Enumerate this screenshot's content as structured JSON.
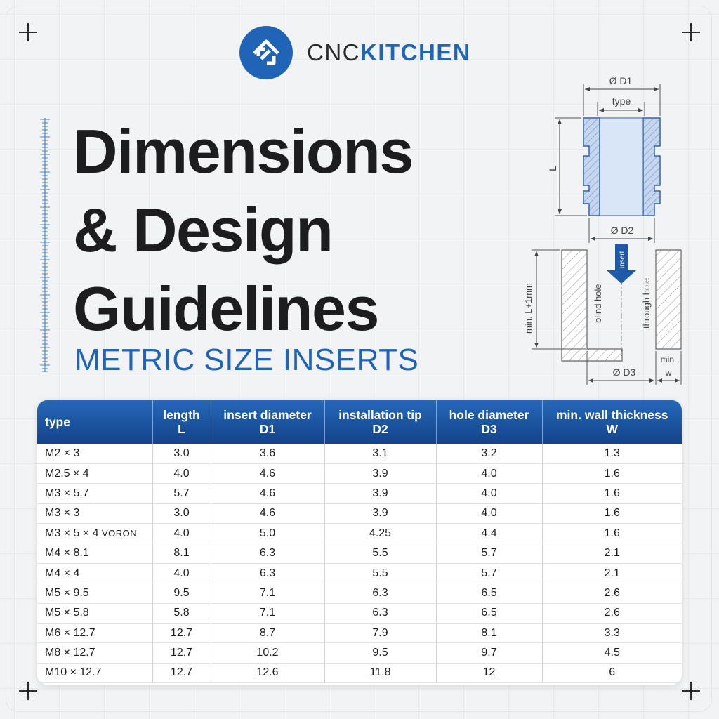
{
  "brand": {
    "name_part1": "CNC",
    "name_part2": "KITCHEN",
    "colors": {
      "primary": "#1f64b6",
      "dark": "#1d1d1f"
    }
  },
  "title": {
    "line1": "Dimensions",
    "line2": "& Design",
    "line3": "Guidelines"
  },
  "subtitle": "METRIC SIZE INSERTS",
  "diagram": {
    "label_d1": "Ø D1",
    "label_type": "type",
    "label_L": "L",
    "label_d2": "Ø D2",
    "label_insert": "insert",
    "label_min_l": "min. L+1mm",
    "label_blind": "blind hole",
    "label_through": "through hole",
    "label_d3": "Ø D3",
    "label_min": "min.",
    "label_w": "w"
  },
  "table": {
    "headers": [
      {
        "line1": "type",
        "line2": ""
      },
      {
        "line1": "length",
        "line2": "L"
      },
      {
        "line1": "insert diameter",
        "line2": "D1"
      },
      {
        "line1": "installation tip",
        "line2": "D2"
      },
      {
        "line1": "hole diameter",
        "line2": "D3"
      },
      {
        "line1": "min. wall thickness",
        "line2": "W"
      }
    ],
    "rows": [
      {
        "type": "M2 × 3",
        "note": "",
        "L": "3.0",
        "D1": "3.6",
        "D2": "3.1",
        "D3": "3.2",
        "W": "1.3"
      },
      {
        "type": "M2.5 × 4",
        "note": "",
        "L": "4.0",
        "D1": "4.6",
        "D2": "3.9",
        "D3": "4.0",
        "W": "1.6"
      },
      {
        "type": "M3 × 5.7",
        "note": "",
        "L": "5.7",
        "D1": "4.6",
        "D2": "3.9",
        "D3": "4.0",
        "W": "1.6"
      },
      {
        "type": "M3 × 3",
        "note": "",
        "L": "3.0",
        "D1": "4.6",
        "D2": "3.9",
        "D3": "4.0",
        "W": "1.6"
      },
      {
        "type": "M3 × 5 × 4",
        "note": "VORON",
        "L": "4.0",
        "D1": "5.0",
        "D2": "4.25",
        "D3": "4.4",
        "W": "1.6"
      },
      {
        "type": "M4 × 8.1",
        "note": "",
        "L": "8.1",
        "D1": "6.3",
        "D2": "5.5",
        "D3": "5.7",
        "W": "2.1"
      },
      {
        "type": "M4 × 4",
        "note": "",
        "L": "4.0",
        "D1": "6.3",
        "D2": "5.5",
        "D3": "5.7",
        "W": "2.1"
      },
      {
        "type": "M5 × 9.5",
        "note": "",
        "L": "9.5",
        "D1": "7.1",
        "D2": "6.3",
        "D3": "6.5",
        "W": "2.6"
      },
      {
        "type": "M5 × 5.8",
        "note": "",
        "L": "5.8",
        "D1": "7.1",
        "D2": "6.3",
        "D3": "6.5",
        "W": "2.6"
      },
      {
        "type": "M6 × 12.7",
        "note": "",
        "L": "12.7",
        "D1": "8.7",
        "D2": "7.9",
        "D3": "8.1",
        "W": "3.3"
      },
      {
        "type": "M8 × 12.7",
        "note": "",
        "L": "12.7",
        "D1": "10.2",
        "D2": "9.5",
        "D3": "9.7",
        "W": "4.5"
      },
      {
        "type": "M10 × 12.7",
        "note": "",
        "L": "12.7",
        "D1": "12.6",
        "D2": "11.8",
        "D3": "12",
        "W": "6"
      }
    ]
  }
}
